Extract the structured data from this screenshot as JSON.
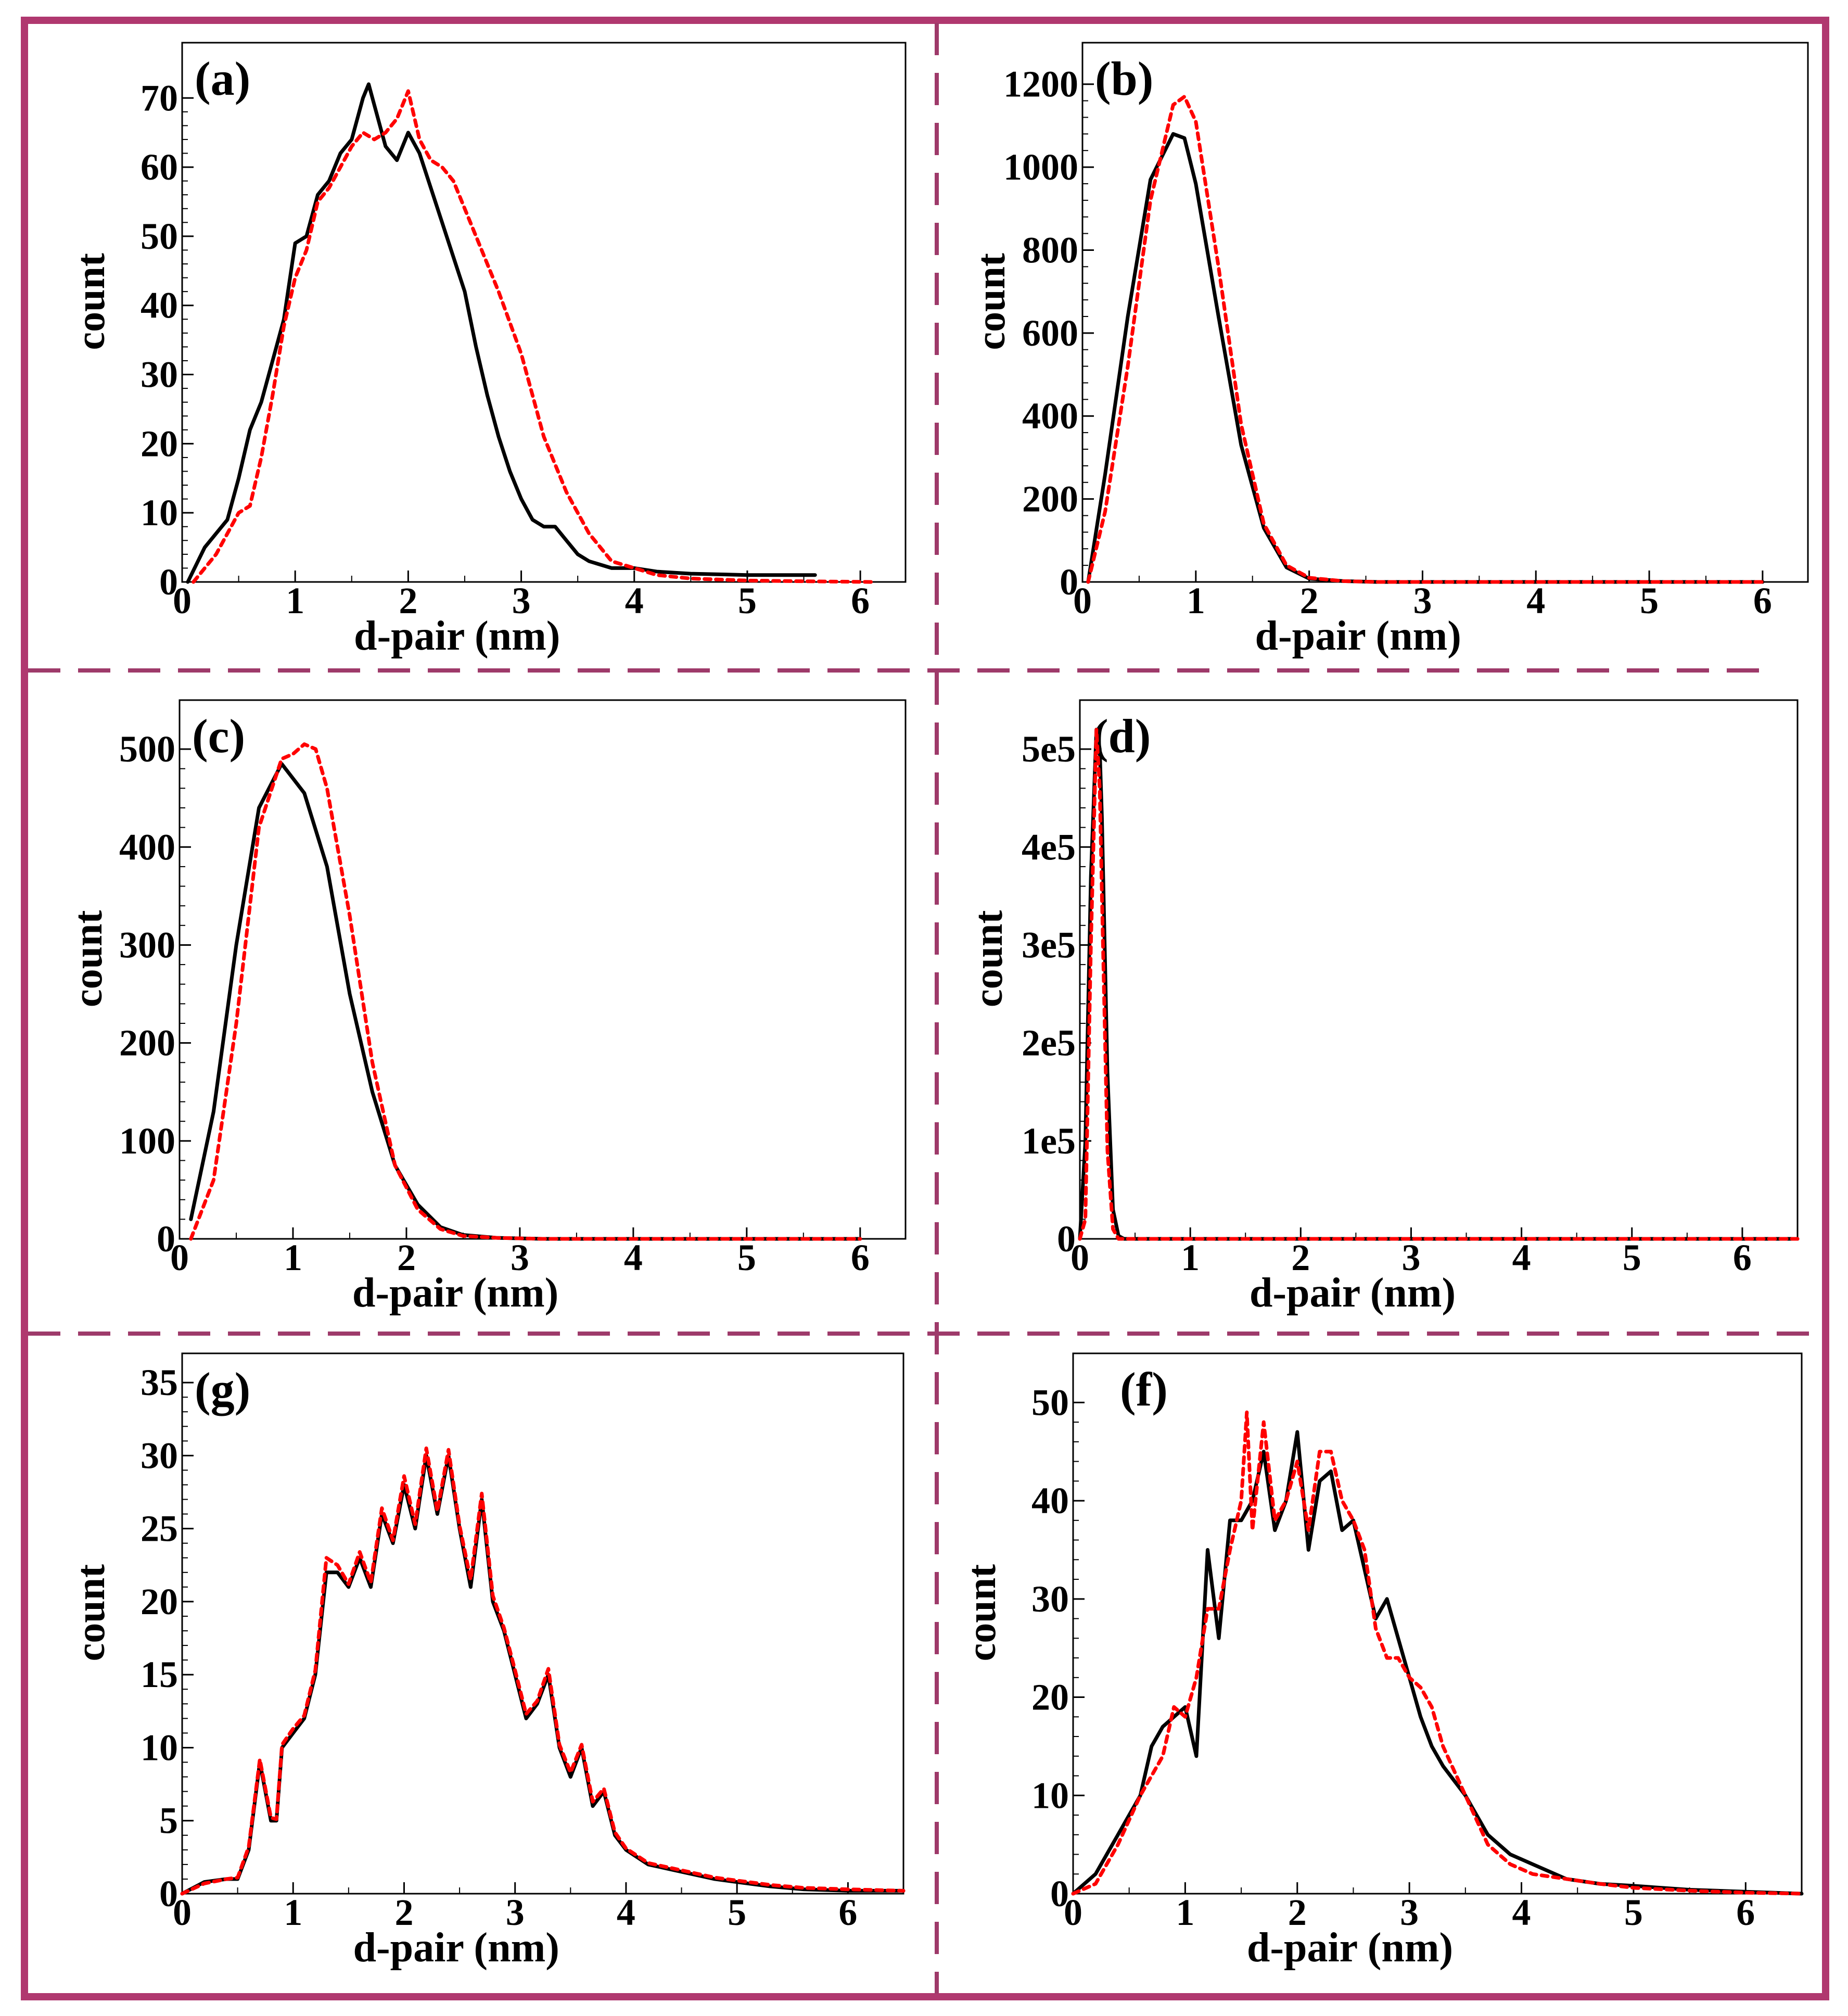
{
  "style": {
    "frame_color": "#b0386f",
    "divider_color": "#9e3a6a",
    "series_colors": [
      "#000000",
      "#ff0000"
    ]
  },
  "chart_data": [
    {
      "panel": "(a)",
      "type": "line",
      "xlabel": "d-pair (nm)",
      "ylabel": "count",
      "xlim": [
        0,
        6.4
      ],
      "ylim": [
        0,
        78
      ],
      "xticks": [
        "0",
        "1",
        "2",
        "3",
        "4",
        "5",
        "6"
      ],
      "yticks": [
        "0",
        "10",
        "20",
        "30",
        "40",
        "50",
        "60",
        "70"
      ],
      "series": [
        {
          "name": "black-solid",
          "x": [
            0.05,
            0.2,
            0.4,
            0.5,
            0.6,
            0.7,
            0.8,
            0.9,
            1.0,
            1.1,
            1.2,
            1.3,
            1.4,
            1.5,
            1.6,
            1.65,
            1.7,
            1.8,
            1.9,
            2.0,
            2.1,
            2.2,
            2.3,
            2.4,
            2.5,
            2.6,
            2.7,
            2.8,
            2.9,
            3.0,
            3.1,
            3.2,
            3.3,
            3.4,
            3.5,
            3.6,
            3.8,
            4.0,
            4.2,
            4.5,
            5.0,
            5.6
          ],
          "y": [
            0,
            5,
            9,
            15,
            22,
            26,
            32,
            38,
            49,
            50,
            56,
            58,
            62,
            64,
            70,
            72,
            69,
            63,
            61,
            65,
            62,
            57,
            52,
            47,
            42,
            34,
            27,
            21,
            16,
            12,
            9,
            8,
            8,
            6,
            4,
            3,
            2,
            2,
            1.5,
            1.2,
            1,
            1
          ]
        },
        {
          "name": "red-dotted",
          "x": [
            0.1,
            0.3,
            0.5,
            0.6,
            0.7,
            0.8,
            0.9,
            1.0,
            1.1,
            1.2,
            1.3,
            1.4,
            1.5,
            1.6,
            1.7,
            1.8,
            1.9,
            2.0,
            2.1,
            2.2,
            2.3,
            2.4,
            2.6,
            2.8,
            3.0,
            3.2,
            3.4,
            3.6,
            3.8,
            4.0,
            4.2,
            4.5,
            5.0,
            5.5,
            6.1
          ],
          "y": [
            0,
            4,
            10,
            11,
            18,
            27,
            37,
            44,
            48,
            55,
            57,
            60,
            63,
            65,
            64,
            65,
            67,
            71,
            64,
            61,
            60,
            58,
            50,
            42,
            33,
            21,
            13,
            7,
            3,
            2,
            1,
            0.5,
            0.2,
            0.1,
            0
          ]
        }
      ]
    },
    {
      "panel": "(b)",
      "type": "line",
      "xlabel": "d-pair (nm)",
      "ylabel": "count",
      "xlim": [
        0,
        6.4
      ],
      "ylim": [
        0,
        1300
      ],
      "xticks": [
        "0",
        "1",
        "2",
        "3",
        "4",
        "5",
        "6"
      ],
      "yticks": [
        "0",
        "200",
        "400",
        "600",
        "800",
        "1000",
        "1200"
      ],
      "series": [
        {
          "name": "black-solid",
          "x": [
            0.05,
            0.2,
            0.4,
            0.6,
            0.8,
            0.9,
            1.0,
            1.2,
            1.4,
            1.6,
            1.8,
            2.0,
            2.3,
            2.6,
            3.0,
            6.0
          ],
          "y": [
            0,
            260,
            640,
            970,
            1080,
            1070,
            960,
            640,
            330,
            130,
            35,
            8,
            2,
            0,
            0,
            0
          ]
        },
        {
          "name": "red-dotted",
          "x": [
            0.05,
            0.2,
            0.4,
            0.6,
            0.8,
            0.9,
            1.0,
            1.2,
            1.4,
            1.6,
            1.8,
            2.0,
            2.3,
            2.6,
            3.0,
            6.0
          ],
          "y": [
            0,
            170,
            520,
            920,
            1150,
            1170,
            1110,
            760,
            380,
            140,
            40,
            10,
            2,
            0,
            0,
            0
          ]
        }
      ]
    },
    {
      "panel": "(c)",
      "type": "line",
      "xlabel": "d-pair (nm)",
      "ylabel": "count",
      "xlim": [
        0,
        6.4
      ],
      "ylim": [
        0,
        550
      ],
      "xticks": [
        "0",
        "1",
        "2",
        "3",
        "4",
        "5",
        "6"
      ],
      "yticks": [
        "0",
        "100",
        "200",
        "300",
        "400",
        "500"
      ],
      "series": [
        {
          "name": "black-solid",
          "x": [
            0.1,
            0.3,
            0.5,
            0.7,
            0.9,
            1.0,
            1.1,
            1.3,
            1.5,
            1.7,
            1.9,
            2.1,
            2.3,
            2.5,
            2.8,
            3.2,
            6.0
          ],
          "y": [
            20,
            130,
            300,
            440,
            485,
            470,
            455,
            380,
            250,
            150,
            75,
            35,
            12,
            4,
            1,
            0,
            0
          ]
        },
        {
          "name": "red-dotted",
          "x": [
            0.1,
            0.3,
            0.5,
            0.7,
            0.9,
            1.0,
            1.1,
            1.2,
            1.3,
            1.5,
            1.7,
            1.9,
            2.1,
            2.3,
            2.5,
            2.8,
            3.2,
            6.0
          ],
          "y": [
            0,
            60,
            220,
            420,
            490,
            495,
            505,
            500,
            460,
            330,
            180,
            75,
            30,
            10,
            3,
            1,
            0,
            0
          ]
        }
      ]
    },
    {
      "panel": "(d)",
      "type": "line",
      "xlabel": "d-pair (nm)",
      "ylabel": "count",
      "xlim": [
        0,
        6.5
      ],
      "ylim": [
        0,
        550000
      ],
      "xticks": [
        "0",
        "1",
        "2",
        "3",
        "4",
        "5",
        "6"
      ],
      "yticks": [
        "0",
        "1e5",
        "2e5",
        "3e5",
        "4e5",
        "5e5"
      ],
      "series": [
        {
          "name": "black-solid",
          "x": [
            0,
            0.05,
            0.1,
            0.15,
            0.18,
            0.2,
            0.25,
            0.3,
            0.35,
            0.4,
            6.5
          ],
          "y": [
            0,
            100000,
            370000,
            520000,
            500000,
            430000,
            170000,
            30000,
            3000,
            0,
            0
          ]
        },
        {
          "name": "red-dotted",
          "x": [
            0,
            0.05,
            0.1,
            0.15,
            0.18,
            0.2,
            0.25,
            0.3,
            0.35,
            6.5
          ],
          "y": [
            0,
            20000,
            300000,
            520000,
            460000,
            350000,
            90000,
            10000,
            0,
            0
          ]
        }
      ]
    },
    {
      "panel": "(g)",
      "type": "line",
      "xlabel": "d-pair (nm)",
      "ylabel": "count",
      "xlim": [
        0,
        6.5
      ],
      "ylim": [
        0,
        37
      ],
      "xticks": [
        "0",
        "1",
        "2",
        "3",
        "4",
        "5",
        "6"
      ],
      "yticks": [
        "0",
        "5",
        "10",
        "15",
        "20",
        "25",
        "30",
        "35"
      ],
      "series": [
        {
          "name": "black-solid",
          "x": [
            0,
            0.2,
            0.4,
            0.5,
            0.6,
            0.7,
            0.8,
            0.85,
            0.9,
            1.0,
            1.1,
            1.2,
            1.3,
            1.4,
            1.5,
            1.6,
            1.7,
            1.8,
            1.9,
            2.0,
            2.1,
            2.2,
            2.3,
            2.4,
            2.5,
            2.6,
            2.7,
            2.8,
            2.9,
            3.0,
            3.1,
            3.2,
            3.3,
            3.4,
            3.5,
            3.6,
            3.7,
            3.8,
            3.9,
            4.0,
            4.2,
            4.5,
            4.8,
            5.0,
            5.3,
            5.6,
            6.0,
            6.5
          ],
          "y": [
            0,
            0.8,
            1,
            1,
            3,
            9,
            5,
            5,
            10,
            11,
            12,
            15,
            22,
            22,
            21,
            23,
            21,
            26,
            24,
            28,
            25,
            30,
            26,
            30,
            25,
            21,
            27,
            20,
            18,
            15,
            12,
            13,
            15,
            10,
            8,
            10,
            6,
            7,
            4,
            3,
            2,
            1.5,
            1,
            0.8,
            0.5,
            0.3,
            0.2,
            0.2
          ]
        },
        {
          "name": "red-dotted",
          "x": [
            0,
            0.2,
            0.4,
            0.5,
            0.6,
            0.7,
            0.8,
            0.85,
            0.9,
            1.0,
            1.1,
            1.2,
            1.3,
            1.4,
            1.5,
            1.6,
            1.7,
            1.8,
            1.9,
            2.0,
            2.1,
            2.2,
            2.3,
            2.4,
            2.5,
            2.6,
            2.7,
            2.8,
            2.9,
            3.0,
            3.1,
            3.2,
            3.3,
            3.4,
            3.5,
            3.6,
            3.7,
            3.8,
            3.9,
            4.0,
            4.2,
            4.5,
            4.8,
            5.0,
            5.3,
            5.6,
            6.0,
            6.5
          ],
          "y": [
            0,
            0.7,
            1,
            1.1,
            3.2,
            9.2,
            5.2,
            5.1,
            10.2,
            11.3,
            12.2,
            15.3,
            23,
            22.5,
            21.2,
            23.4,
            21.3,
            26.4,
            24.2,
            28.6,
            25.3,
            30.5,
            26.2,
            30.4,
            25.2,
            21.5,
            27.4,
            20.4,
            18.2,
            15.3,
            12.3,
            13.2,
            15.4,
            10.2,
            8.3,
            10.2,
            6.3,
            7.2,
            4.2,
            3.1,
            2.1,
            1.6,
            1.1,
            0.9,
            0.6,
            0.4,
            0.3,
            0.2
          ]
        }
      ]
    },
    {
      "panel": "(f)",
      "type": "line",
      "xlabel": "d-pair (nm)",
      "ylabel": "count",
      "xlim": [
        0,
        6.5
      ],
      "ylim": [
        0,
        55
      ],
      "xticks": [
        "0",
        "1",
        "2",
        "3",
        "4",
        "5",
        "6"
      ],
      "yticks": [
        "0",
        "10",
        "20",
        "30",
        "40",
        "50"
      ],
      "series": [
        {
          "name": "black-solid",
          "x": [
            0,
            0.2,
            0.4,
            0.6,
            0.7,
            0.8,
            0.9,
            1.0,
            1.1,
            1.2,
            1.3,
            1.4,
            1.5,
            1.6,
            1.7,
            1.8,
            1.9,
            2.0,
            2.1,
            2.2,
            2.3,
            2.4,
            2.5,
            2.6,
            2.7,
            2.8,
            2.9,
            3.0,
            3.1,
            3.2,
            3.3,
            3.5,
            3.7,
            3.9,
            4.1,
            4.4,
            4.7,
            5.0,
            5.5,
            6.0,
            6.5
          ],
          "y": [
            0,
            2,
            6,
            10,
            15,
            17,
            18,
            19,
            14,
            35,
            26,
            38,
            38,
            40,
            45,
            37,
            40,
            47,
            35,
            42,
            43,
            37,
            38,
            33,
            28,
            30,
            26,
            22,
            18,
            15,
            13,
            10,
            6,
            4,
            3,
            1.5,
            1,
            0.8,
            0.4,
            0.2,
            0
          ]
        },
        {
          "name": "red-dotted",
          "x": [
            0,
            0.2,
            0.4,
            0.6,
            0.8,
            0.9,
            1.0,
            1.1,
            1.2,
            1.3,
            1.4,
            1.5,
            1.55,
            1.6,
            1.7,
            1.8,
            1.9,
            2.0,
            2.1,
            2.2,
            2.3,
            2.4,
            2.5,
            2.6,
            2.7,
            2.8,
            2.9,
            3.0,
            3.1,
            3.2,
            3.3,
            3.5,
            3.7,
            3.9,
            4.1,
            4.4,
            4.7,
            5.0,
            5.5,
            6.0,
            6.5
          ],
          "y": [
            0,
            1,
            5,
            10,
            14,
            19,
            18,
            22,
            29,
            29,
            35,
            40,
            49,
            37,
            48,
            38,
            40,
            44,
            37,
            45,
            45,
            40,
            38,
            35,
            27,
            24,
            24,
            22,
            21,
            19,
            15,
            10,
            5,
            3,
            2,
            1.5,
            1,
            0.6,
            0.3,
            0.1,
            0
          ]
        }
      ]
    }
  ]
}
